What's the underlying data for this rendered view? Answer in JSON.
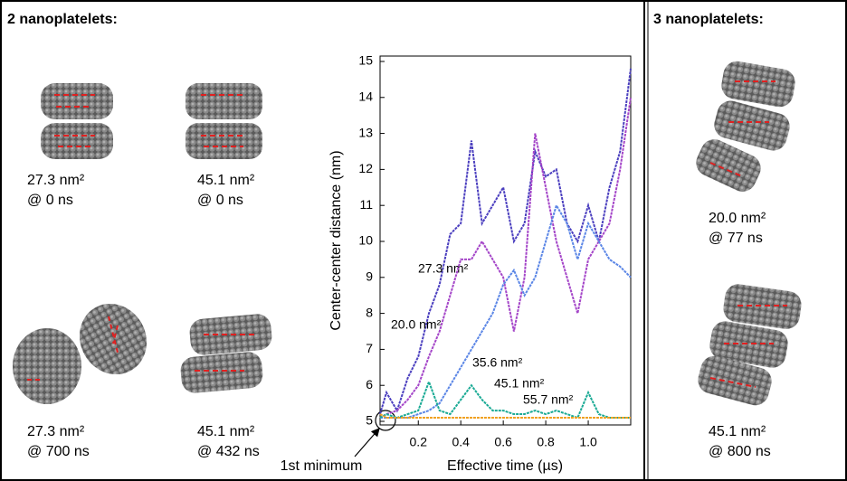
{
  "left_panel": {
    "title": "2 nanoplatelets:",
    "items": [
      {
        "label": "27.3 nm²",
        "time": "@ 0 ns"
      },
      {
        "label": "45.1 nm²",
        "time": "@ 0 ns"
      },
      {
        "label": "27.3 nm²",
        "time": "@ 700 ns"
      },
      {
        "label": "45.1 nm²",
        "time": "@ 432 ns"
      }
    ]
  },
  "right_panel": {
    "title": "3 nanoplatelets:",
    "items": [
      {
        "label": "20.0 nm²",
        "time": "@ 77 ns"
      },
      {
        "label": "45.1 nm²",
        "time": "@ 800 ns"
      }
    ]
  },
  "chart_data": {
    "type": "line",
    "x_label": "Effective time (µs)",
    "y_label": "Center-center distance (nm)",
    "annotation": "1st minimum",
    "x": [
      0.02,
      0.05,
      0.1,
      0.15,
      0.2,
      0.25,
      0.3,
      0.35,
      0.4,
      0.45,
      0.5,
      0.55,
      0.6,
      0.65,
      0.7,
      0.75,
      0.8,
      0.85,
      0.9,
      0.95,
      1.0,
      1.05,
      1.1,
      1.15,
      1.2
    ],
    "series": [
      {
        "name": "27.3 nm²",
        "color": "#4b3fbf",
        "values": [
          5.2,
          5.8,
          5.3,
          6.2,
          6.8,
          8,
          8.8,
          10.2,
          10.5,
          12.8,
          10.5,
          11,
          11.5,
          10,
          10.5,
          12.5,
          11.8,
          12,
          10.5,
          10,
          11,
          10,
          11.5,
          12.5,
          14.8
        ]
      },
      {
        "name": "20.0 nm²",
        "color": "#a445c8",
        "values": [
          5.1,
          5.2,
          5.3,
          5.6,
          6.0,
          6.8,
          7.5,
          8.5,
          9.5,
          9.5,
          10,
          9.5,
          9,
          7.5,
          9,
          13,
          11.5,
          10,
          9,
          8,
          9.5,
          10,
          10.5,
          12,
          14
        ]
      },
      {
        "name": "35.6 nm²",
        "color": "#5b86e6",
        "values": [
          5.1,
          5.1,
          5.1,
          5.1,
          5.2,
          5.3,
          5.5,
          6,
          6.5,
          7,
          7.5,
          8,
          8.8,
          9.2,
          8.5,
          9,
          10,
          11,
          10.5,
          9.5,
          10.5,
          10,
          9.5,
          9.3,
          9
        ]
      },
      {
        "name": "45.1 nm²",
        "color": "#1aaa95",
        "values": [
          5.1,
          5.2,
          5.1,
          5.2,
          5.3,
          6.1,
          5.3,
          5.2,
          5.6,
          6.0,
          5.6,
          5.3,
          5.3,
          5.2,
          5.2,
          5.3,
          5.2,
          5.3,
          5.2,
          5.1,
          5.8,
          5.2,
          5.1,
          5.1,
          5.1
        ]
      },
      {
        "name": "55.7 nm²",
        "color": "#f0a020",
        "values": [
          5.2,
          5.1,
          5.1,
          5.1,
          5.1,
          5.1,
          5.1,
          5.1,
          5.1,
          5.1,
          5.1,
          5.1,
          5.1,
          5.1,
          5.1,
          5.1,
          5.1,
          5.1,
          5.1,
          5.1,
          5.1,
          5.1,
          5.1,
          5.1,
          5.1
        ]
      }
    ],
    "xlim": [
      0.02,
      1.2
    ],
    "ylim": [
      4.9,
      15.15
    ],
    "xticks": [
      0.2,
      0.4,
      0.6,
      0.8,
      {
        "value": 1,
        "label": "1.0"
      }
    ],
    "yticks": [
      5,
      6,
      7,
      8,
      9,
      10,
      11,
      12,
      13,
      14,
      15
    ]
  }
}
